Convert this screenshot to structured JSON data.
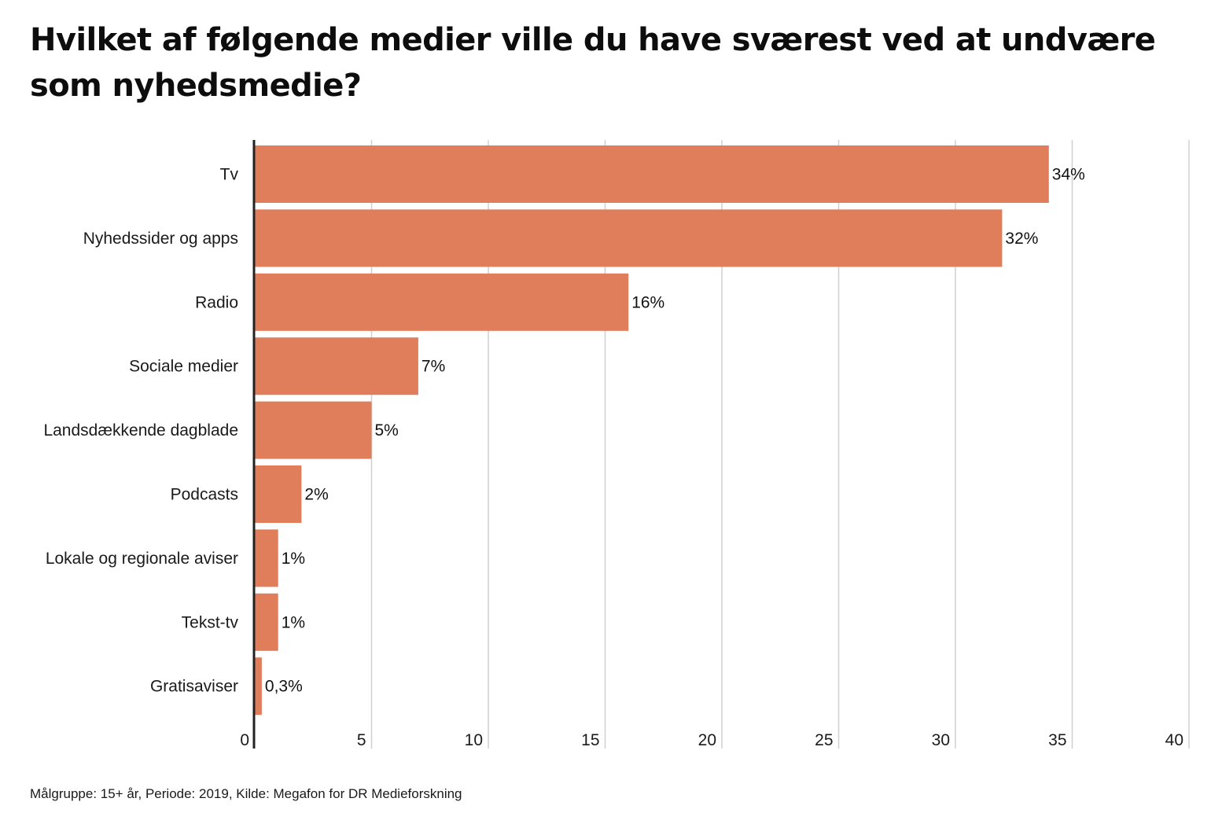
{
  "chart_data": {
    "type": "bar",
    "orientation": "horizontal",
    "title": "Hvilket af følgende medier ville du have sværest ved at undvære som nyhedsmedie?",
    "categories": [
      "Tv",
      "Nyhedssider og apps",
      "Radio",
      "Sociale medier",
      "Landsdækkende dagblade",
      "Podcasts",
      "Lokale og regionale aviser",
      "Tekst-tv",
      "Gratisaviser"
    ],
    "values": [
      34,
      32,
      16,
      7,
      5,
      2,
      1,
      1,
      0.3
    ],
    "value_labels": [
      "34%",
      "32%",
      "16%",
      "7%",
      "5%",
      "2%",
      "1%",
      "1%",
      "0,3%"
    ],
    "xlim": [
      0,
      40
    ],
    "xticks": [
      "0",
      "5",
      "10",
      "15",
      "20",
      "25",
      "30",
      "35",
      "40"
    ],
    "xlabel": "",
    "ylabel": "",
    "grid": true,
    "legend": "none",
    "bar_color": "#e07d5a",
    "grid_color": "#d0d0d0",
    "axis_color": "#222222"
  },
  "footer": {
    "source": "Målgruppe: 15+ år, Periode: 2019, Kilde: Megafon for DR Medieforskning"
  }
}
